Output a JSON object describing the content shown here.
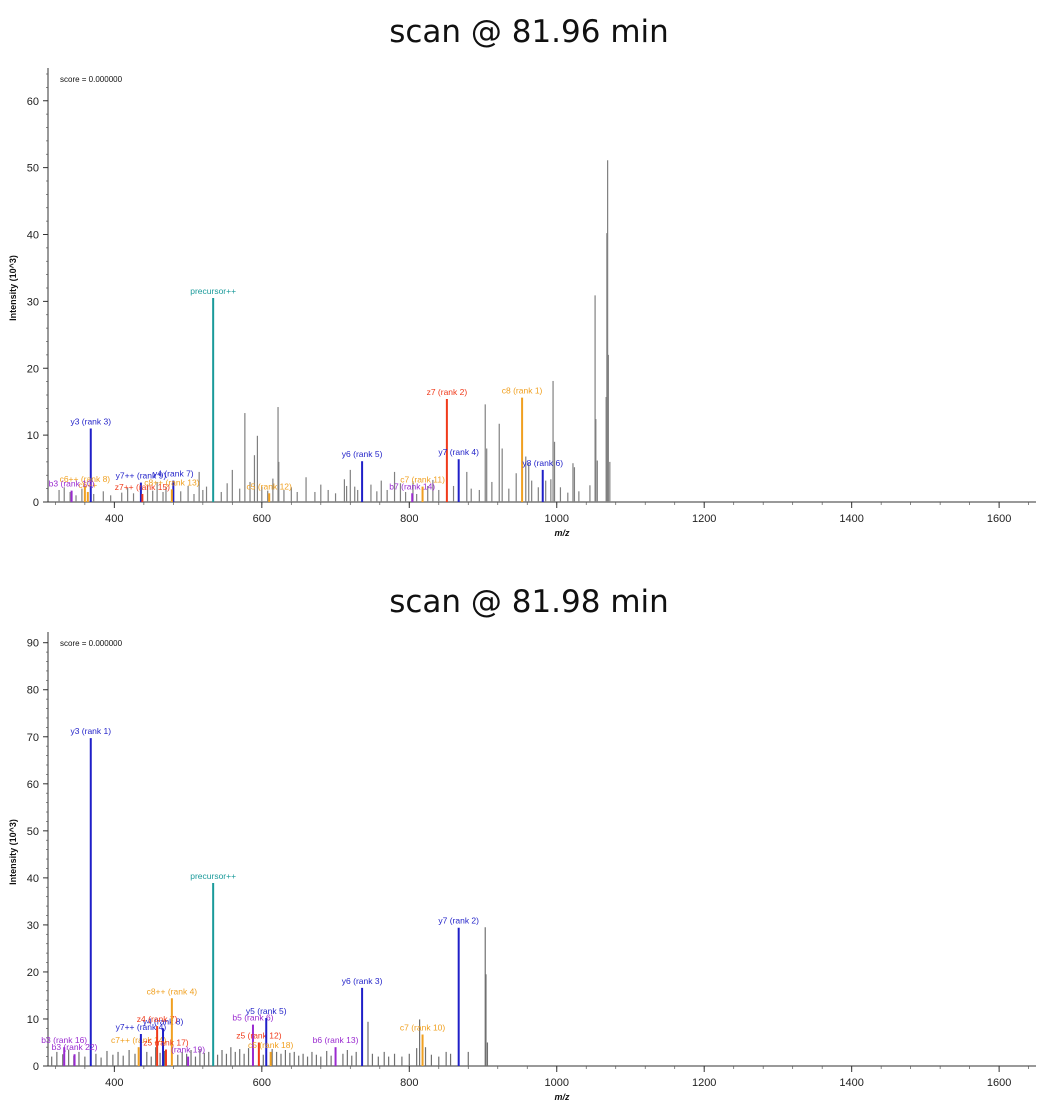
{
  "chart_data": [
    {
      "type": "bar",
      "title": "scan @ 81.96 min",
      "xlabel": "m/z",
      "ylabel": "Intensity (10^3)",
      "score_label": "score = 0.000000",
      "xlim": [
        310,
        1650
      ],
      "ylim": [
        0,
        64
      ],
      "xticks": [
        400,
        600,
        800,
        1000,
        1200,
        1400,
        1600
      ],
      "yticks": [
        0,
        10,
        20,
        30,
        40,
        50,
        60
      ],
      "colors": {
        "unannotated": "#808080",
        "y": "#1f1fc8",
        "b": "#9a2ad0",
        "c": "#f0a020",
        "z": "#f03a1a",
        "precursor": "#1a9a9a"
      },
      "peaks": [
        [
          325,
          1.8,
          "gray"
        ],
        [
          332,
          2.2,
          "gray"
        ],
        [
          340,
          1.5,
          "gray"
        ],
        [
          348,
          1.0,
          "gray"
        ],
        [
          356,
          2.0,
          "gray"
        ],
        [
          372,
          1.2,
          "gray"
        ],
        [
          385,
          1.6,
          "gray"
        ],
        [
          395,
          1.0,
          "gray"
        ],
        [
          410,
          1.4,
          "gray"
        ],
        [
          418,
          2.1,
          "gray"
        ],
        [
          426,
          1.3,
          "gray"
        ],
        [
          445,
          2.5,
          "gray"
        ],
        [
          452,
          1.7,
          "gray"
        ],
        [
          458,
          3.0,
          "gray"
        ],
        [
          466,
          1.5,
          "gray"
        ],
        [
          470,
          2.2,
          "gray"
        ],
        [
          490,
          1.6,
          "gray"
        ],
        [
          500,
          2.4,
          "gray"
        ],
        [
          508,
          1.2,
          "gray"
        ],
        [
          515,
          4.5,
          "gray"
        ],
        [
          520,
          1.8,
          "gray"
        ],
        [
          525,
          2.3,
          "gray"
        ],
        [
          545,
          1.5,
          "gray"
        ],
        [
          553,
          2.8,
          "gray"
        ],
        [
          560,
          4.8,
          "gray"
        ],
        [
          570,
          2.0,
          "gray"
        ],
        [
          577,
          13.3,
          "gray"
        ],
        [
          584,
          3.0,
          "gray"
        ],
        [
          590,
          7.0,
          "gray"
        ],
        [
          594,
          9.9,
          "gray"
        ],
        [
          600,
          2.3,
          "gray"
        ],
        [
          608,
          1.7,
          "gray"
        ],
        [
          615,
          3.5,
          "gray"
        ],
        [
          622,
          14.2,
          "gray"
        ],
        [
          623,
          6.0,
          "gray"
        ],
        [
          630,
          1.8,
          "gray"
        ],
        [
          640,
          2.2,
          "gray"
        ],
        [
          648,
          1.5,
          "gray"
        ],
        [
          660,
          3.7,
          "gray"
        ],
        [
          672,
          1.5,
          "gray"
        ],
        [
          680,
          2.6,
          "gray"
        ],
        [
          690,
          1.8,
          "gray"
        ],
        [
          700,
          1.3,
          "gray"
        ],
        [
          712,
          3.4,
          "gray"
        ],
        [
          715,
          2.4,
          "gray"
        ],
        [
          720,
          4.8,
          "gray"
        ],
        [
          726,
          2.3,
          "gray"
        ],
        [
          730,
          1.8,
          "gray"
        ],
        [
          748,
          2.6,
          "gray"
        ],
        [
          756,
          1.6,
          "gray"
        ],
        [
          762,
          3.2,
          "gray"
        ],
        [
          770,
          1.8,
          "gray"
        ],
        [
          780,
          4.5,
          "gray"
        ],
        [
          788,
          2.8,
          "gray"
        ],
        [
          795,
          1.5,
          "gray"
        ],
        [
          805,
          3.1,
          "gray"
        ],
        [
          810,
          1.2,
          "gray"
        ],
        [
          825,
          2.4,
          "gray"
        ],
        [
          832,
          3.3,
          "gray"
        ],
        [
          840,
          1.8,
          "gray"
        ],
        [
          860,
          2.4,
          "gray"
        ],
        [
          878,
          4.5,
          "gray"
        ],
        [
          884,
          2.0,
          "gray"
        ],
        [
          895,
          1.8,
          "gray"
        ],
        [
          903,
          14.6,
          "gray"
        ],
        [
          905,
          8.0,
          "gray"
        ],
        [
          912,
          3.0,
          "gray"
        ],
        [
          922,
          11.7,
          "gray"
        ],
        [
          926,
          8.0,
          "gray"
        ],
        [
          935,
          2.0,
          "gray"
        ],
        [
          945,
          4.3,
          "gray"
        ],
        [
          958,
          6.8,
          "gray"
        ],
        [
          962,
          5.8,
          "gray"
        ],
        [
          966,
          3.2,
          "gray"
        ],
        [
          975,
          2.2,
          "gray"
        ],
        [
          985,
          3.2,
          "gray"
        ],
        [
          992,
          3.4,
          "gray"
        ],
        [
          995,
          18.1,
          "gray"
        ],
        [
          997,
          9.0,
          "gray"
        ],
        [
          1005,
          2.2,
          "gray"
        ],
        [
          1015,
          1.4,
          "gray"
        ],
        [
          1022,
          5.8,
          "gray"
        ],
        [
          1024,
          5.2,
          "gray"
        ],
        [
          1030,
          1.6,
          "gray"
        ],
        [
          1045,
          2.5,
          "gray"
        ],
        [
          1052,
          30.9,
          "gray"
        ],
        [
          1053,
          12.4,
          "gray"
        ],
        [
          1055,
          6.2,
          "gray"
        ],
        [
          1067,
          15.7,
          "gray"
        ],
        [
          1068,
          40.2,
          "gray"
        ],
        [
          1069,
          51.1,
          "gray"
        ],
        [
          1070,
          22.0,
          "gray"
        ],
        [
          1072,
          6.0,
          "gray"
        ],
        [
          368,
          11.0,
          "y",
          "y3 (rank 3)"
        ],
        [
          360,
          2.4,
          "c",
          "c6++ (rank 8)"
        ],
        [
          364,
          1.5,
          "c",
          "c6++"
        ],
        [
          342,
          1.7,
          "b",
          "b3 (rank 10)"
        ],
        [
          436,
          2.9,
          "y",
          "y7++ (rank 9)"
        ],
        [
          438,
          1.2,
          "z",
          "z7++ (rank 15)"
        ],
        [
          480,
          3.2,
          "y",
          "y4 (rank 7)"
        ],
        [
          478,
          1.9,
          "c",
          "c8++ (rank 13)"
        ],
        [
          534,
          30.5,
          "precursor",
          "precursor++"
        ],
        [
          610,
          1.3,
          "c",
          "c5 (rank 12)"
        ],
        [
          736,
          6.1,
          "y",
          "y6 (rank 5)"
        ],
        [
          804,
          1.3,
          "b",
          "b7 (rank 14)"
        ],
        [
          818,
          2.3,
          "c",
          "c7 (rank 11)"
        ],
        [
          851,
          15.4,
          "z",
          "z7 (rank 2)"
        ],
        [
          867,
          6.4,
          "y",
          "y7 (rank 4)"
        ],
        [
          953,
          15.6,
          "c",
          "c8 (rank 1)"
        ],
        [
          981,
          4.8,
          "y",
          "y8 (rank 6)"
        ]
      ]
    },
    {
      "type": "bar",
      "title": "scan @ 81.98 min",
      "xlabel": "m/z",
      "ylabel": "Intensity (10^3)",
      "score_label": "score = 0.000000",
      "xlim": [
        310,
        1650
      ],
      "ylim": [
        0,
        91
      ],
      "xticks": [
        400,
        600,
        800,
        1000,
        1200,
        1400,
        1600
      ],
      "yticks": [
        0,
        10,
        20,
        30,
        40,
        50,
        60,
        70,
        80,
        90
      ],
      "colors": {
        "unannotated": "#707070",
        "y": "#1f1fc8",
        "b": "#9a2ad0",
        "c": "#f0a020",
        "z": "#f03a1a",
        "precursor": "#1a9a9a"
      },
      "peaks": [
        [
          315,
          2.0,
          "gray"
        ],
        [
          322,
          3.0,
          "gray"
        ],
        [
          330,
          2.5,
          "gray"
        ],
        [
          338,
          3.5,
          "gray"
        ],
        [
          345,
          2.2,
          "gray"
        ],
        [
          352,
          3.0,
          "gray"
        ],
        [
          360,
          2.0,
          "gray"
        ],
        [
          375,
          2.6,
          "gray"
        ],
        [
          382,
          1.8,
          "gray"
        ],
        [
          390,
          3.2,
          "gray"
        ],
        [
          398,
          2.4,
          "gray"
        ],
        [
          405,
          3.0,
          "gray"
        ],
        [
          412,
          2.2,
          "gray"
        ],
        [
          420,
          3.4,
          "gray"
        ],
        [
          428,
          2.6,
          "gray"
        ],
        [
          444,
          3.0,
          "gray"
        ],
        [
          450,
          2.0,
          "gray"
        ],
        [
          456,
          4.0,
          "gray"
        ],
        [
          462,
          2.8,
          "gray"
        ],
        [
          468,
          3.2,
          "gray"
        ],
        [
          486,
          2.4,
          "gray"
        ],
        [
          492,
          3.0,
          "gray"
        ],
        [
          498,
          2.6,
          "gray"
        ],
        [
          504,
          3.4,
          "gray"
        ],
        [
          510,
          2.0,
          "gray"
        ],
        [
          516,
          3.6,
          "gray"
        ],
        [
          522,
          2.8,
          "gray"
        ],
        [
          528,
          3.0,
          "gray"
        ],
        [
          540,
          2.4,
          "gray"
        ],
        [
          546,
          3.4,
          "gray"
        ],
        [
          552,
          2.6,
          "gray"
        ],
        [
          558,
          4.0,
          "gray"
        ],
        [
          564,
          3.0,
          "gray"
        ],
        [
          570,
          3.6,
          "gray"
        ],
        [
          576,
          2.6,
          "gray"
        ],
        [
          582,
          3.8,
          "gray"
        ],
        [
          588,
          2.8,
          "gray"
        ],
        [
          596,
          3.2,
          "gray"
        ],
        [
          602,
          2.4,
          "gray"
        ],
        [
          614,
          3.6,
          "gray"
        ],
        [
          620,
          3.0,
          "gray"
        ],
        [
          626,
          2.6,
          "gray"
        ],
        [
          632,
          3.4,
          "gray"
        ],
        [
          638,
          2.8,
          "gray"
        ],
        [
          644,
          3.0,
          "gray"
        ],
        [
          650,
          2.2,
          "gray"
        ],
        [
          656,
          2.6,
          "gray"
        ],
        [
          662,
          2.0,
          "gray"
        ],
        [
          668,
          3.0,
          "gray"
        ],
        [
          674,
          2.4,
          "gray"
        ],
        [
          680,
          2.0,
          "gray"
        ],
        [
          688,
          3.2,
          "gray"
        ],
        [
          694,
          2.2,
          "gray"
        ],
        [
          710,
          2.6,
          "gray"
        ],
        [
          716,
          3.4,
          "gray"
        ],
        [
          722,
          2.2,
          "gray"
        ],
        [
          728,
          3.0,
          "gray"
        ],
        [
          744,
          9.4,
          "gray"
        ],
        [
          750,
          2.6,
          "gray"
        ],
        [
          758,
          2.0,
          "gray"
        ],
        [
          766,
          3.0,
          "gray"
        ],
        [
          772,
          2.0,
          "gray"
        ],
        [
          780,
          2.6,
          "gray"
        ],
        [
          790,
          2.0,
          "gray"
        ],
        [
          800,
          2.6,
          "gray"
        ],
        [
          810,
          3.8,
          "gray"
        ],
        [
          814,
          9.9,
          "gray"
        ],
        [
          822,
          4.0,
          "gray"
        ],
        [
          830,
          2.4,
          "gray"
        ],
        [
          840,
          2.0,
          "gray"
        ],
        [
          850,
          3.0,
          "gray"
        ],
        [
          856,
          2.6,
          "gray"
        ],
        [
          880,
          3.0,
          "gray"
        ],
        [
          903,
          29.5,
          "gray"
        ],
        [
          904,
          19.5,
          "gray"
        ],
        [
          906,
          5.0,
          "gray"
        ],
        [
          368,
          69.7,
          "y",
          "y3 (rank 1)"
        ],
        [
          332,
          4.0,
          "b",
          "b3 (rank 16)"
        ],
        [
          346,
          2.5,
          "b",
          "b3 (rank 22)"
        ],
        [
          433,
          4.0,
          "c",
          "c7++ (rank 14)"
        ],
        [
          436,
          6.8,
          "y",
          "y7++ (rank 4)"
        ],
        [
          466,
          8.0,
          "y",
          "y4 (rank 8)"
        ],
        [
          458,
          8.5,
          "z",
          "z4 (rank 7)"
        ],
        [
          478,
          14.4,
          "c",
          "c8++ (rank 4)"
        ],
        [
          470,
          3.5,
          "z",
          "z5 (rank 17)"
        ],
        [
          500,
          2.0,
          "b",
          "(rank 19)"
        ],
        [
          534,
          38.9,
          "precursor",
          "precursor++"
        ],
        [
          588,
          8.8,
          "b",
          "b5 (rank 6)"
        ],
        [
          596,
          5.0,
          "z",
          "z5 (rank 12)"
        ],
        [
          606,
          10.2,
          "y",
          "y5 (rank 5)"
        ],
        [
          612,
          3.0,
          "c",
          "c5 (rank 18)"
        ],
        [
          700,
          4.0,
          "b",
          "b6 (rank 13)"
        ],
        [
          736,
          16.6,
          "y",
          "y6 (rank 3)"
        ],
        [
          818,
          6.7,
          "c",
          "c7 (rank 10)"
        ],
        [
          867,
          29.4,
          "y",
          "y7 (rank 2)"
        ]
      ]
    }
  ]
}
